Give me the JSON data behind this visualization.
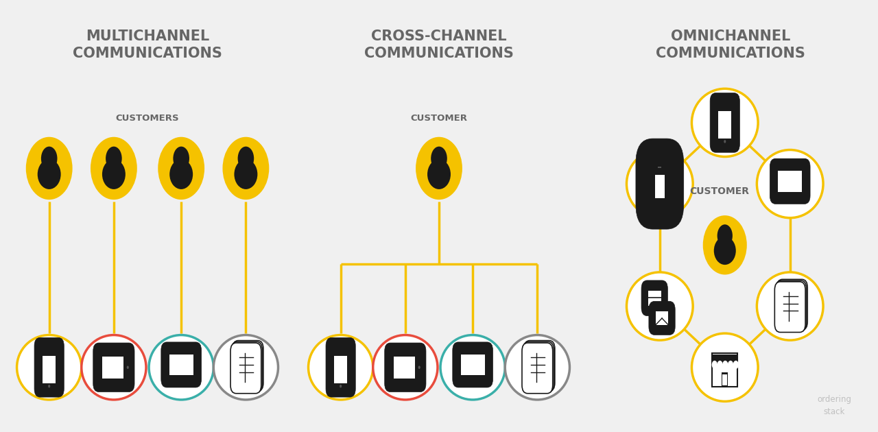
{
  "bg_color": "#f0f0f0",
  "panel_bg": "#ffffff",
  "title_color": "#666666",
  "yellow": "#F5C200",
  "red": "#E84C3D",
  "teal": "#3AAFA9",
  "gray": "#888888",
  "dark": "#1a1a1a",
  "panel1_title": "MULTICHANNEL\nCOMMUNICATIONS",
  "panel2_title": "CROSS-CHANNEL\nCOMMUNICATIONS",
  "panel3_title": "OMNICHANNEL\nCOMMUNICATIONS",
  "panel1_sub": "CUSTOMERS",
  "panel2_sub": "CUSTOMER",
  "panel3_sub": "CUSTOMER",
  "watermark_line1": "ordering",
  "watermark_line2": "stack"
}
